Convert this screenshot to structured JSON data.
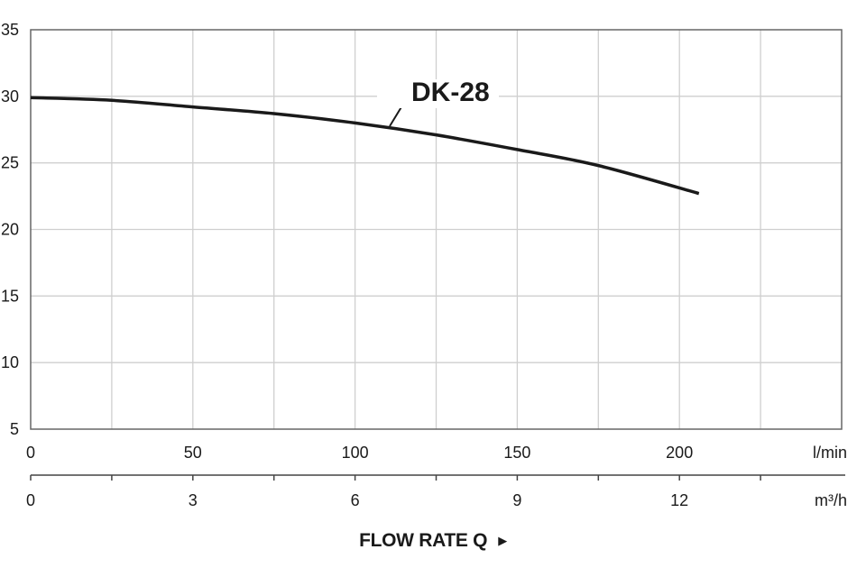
{
  "chart_data": {
    "type": "line",
    "title": "",
    "xlabel": "FLOW RATE Q",
    "ylabel": "",
    "x_units_primary": "l/min",
    "x_units_secondary": "m³/h",
    "xlim": [
      0,
      250
    ],
    "ylim": [
      5,
      35
    ],
    "grid": true,
    "y_ticks": [
      35,
      30,
      25,
      20,
      15,
      10,
      5
    ],
    "x_ticks_primary": [
      0,
      50,
      100,
      150,
      200
    ],
    "x_ticks_secondary": [
      0,
      3,
      6,
      9,
      12
    ],
    "series": [
      {
        "name": "DK-28",
        "x": [
          0,
          25,
          50,
          75,
          100,
          125,
          150,
          175,
          206
        ],
        "values": [
          29.9,
          29.7,
          29.2,
          28.7,
          28.0,
          27.1,
          26.0,
          24.8,
          22.7
        ]
      }
    ],
    "annotations": [
      {
        "text": "DK-28",
        "target_x": 111,
        "target_y": 27.6
      }
    ]
  },
  "labels": {
    "x_title": "FLOW RATE Q",
    "arrow": "▶",
    "unit_primary": "l/min",
    "unit_secondary": "m³/h",
    "series_label": "DK-28"
  }
}
